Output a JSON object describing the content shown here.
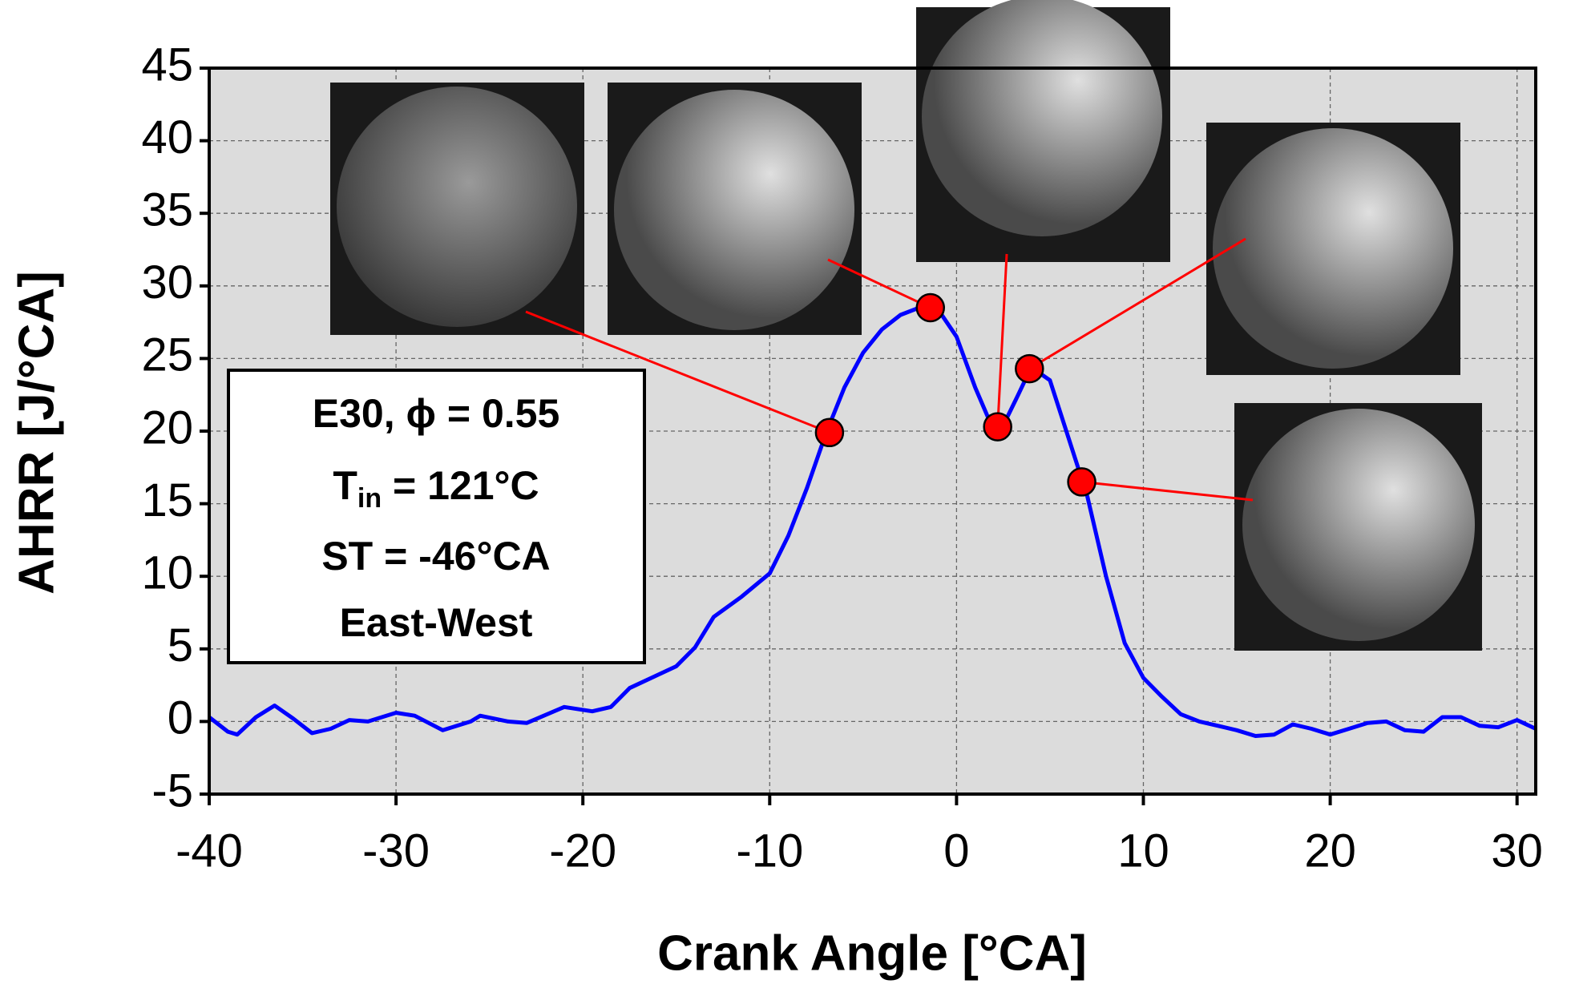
{
  "chart_data": {
    "type": "line",
    "xlabel": "Crank Angle [°CA]",
    "ylabel": "AHRR [J/°CA]",
    "xlim": [
      -40,
      31
    ],
    "ylim": [
      -5,
      45
    ],
    "xticks": [
      -40,
      -30,
      -20,
      -10,
      0,
      10,
      20,
      30
    ],
    "yticks": [
      -5,
      0,
      5,
      10,
      15,
      20,
      25,
      30,
      35,
      40,
      45
    ],
    "grid": true,
    "series": [
      {
        "color": "#0000ff",
        "x": [
          -40,
          -39,
          -38.5,
          -37.5,
          -36.5,
          -35.5,
          -34.5,
          -33.5,
          -32.5,
          -31.5,
          -30,
          -29,
          -27.5,
          -26,
          -25.5,
          -24,
          -23,
          -21,
          -19.5,
          -18.5,
          -17.5,
          -16,
          -15,
          -14,
          -13,
          -11.5,
          -10,
          -9,
          -8,
          -7,
          -6,
          -5,
          -4,
          -3,
          -2,
          -1,
          0,
          1,
          1.7,
          2.5,
          3.3,
          4,
          5,
          6,
          7,
          8,
          9,
          10,
          11,
          12,
          13,
          14,
          15,
          16,
          17,
          18,
          19,
          20,
          21,
          22,
          23,
          24,
          25,
          26,
          27,
          28,
          29,
          30,
          31
        ],
        "values": [
          0.3,
          -0.7,
          -0.9,
          0.3,
          1.1,
          0.2,
          -0.8,
          -0.5,
          0.1,
          0,
          0.6,
          0.4,
          -0.6,
          0,
          0.4,
          0,
          -0.1,
          1,
          0.7,
          1,
          2.3,
          3.2,
          3.8,
          5.1,
          7.2,
          8.6,
          10.2,
          12.8,
          16.1,
          19.8,
          23,
          25.4,
          27,
          28,
          28.5,
          28.4,
          26.5,
          23,
          20.9,
          20.4,
          22.5,
          24.4,
          23.5,
          19.5,
          15.5,
          10,
          5.4,
          3,
          1.7,
          0.5,
          0,
          -0.3,
          -0.6,
          -1,
          -0.9,
          -0.2,
          -0.5,
          -0.9,
          -0.5,
          -0.1,
          0,
          -0.6,
          -0.7,
          0.3,
          0.3,
          -0.3,
          -0.4,
          0.1,
          -0.5
        ]
      },
      {
        "color": "#ff0000",
        "x": [
          -6.8,
          -1.4,
          2.2,
          3.9,
          6.7
        ],
        "values": [
          19.9,
          28.5,
          20.3,
          24.3,
          16.5
        ]
      }
    ],
    "annotation": {
      "line1": "E30, ϕ  = 0.55",
      "line2_main": "T",
      "line2_sub": "in",
      "line2_rest": " = 121°C",
      "line3": "ST = -46°CA",
      "line4": "East-West"
    }
  }
}
